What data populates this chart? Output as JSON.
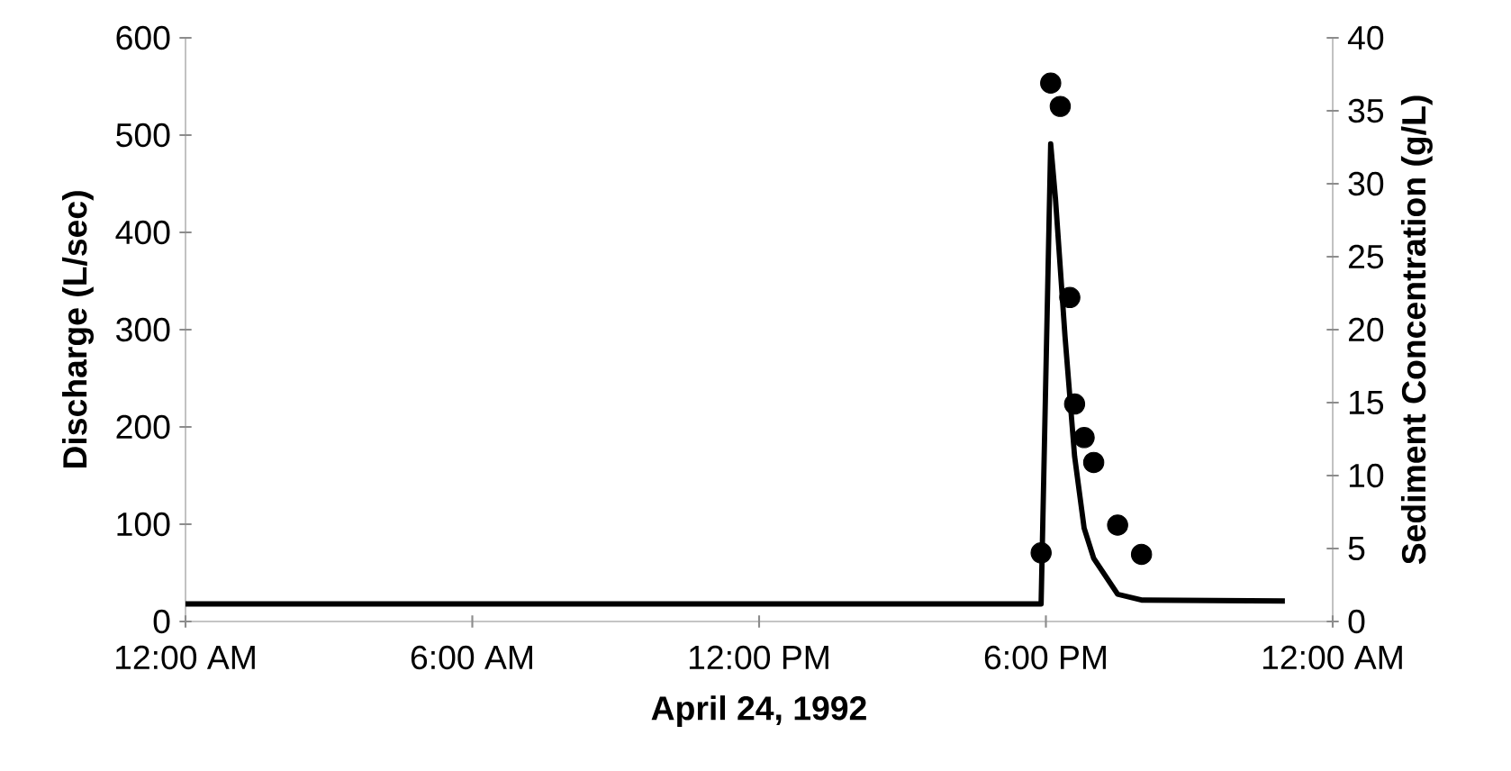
{
  "chart_data": {
    "type": "line",
    "xlabel": "April 24, 1992",
    "ylabel": "Discharge (L/sec)",
    "y2label": "Sediment Concentration (g/L)",
    "xlim": [
      0,
      24
    ],
    "xticks": [
      {
        "value": 0,
        "label": "12:00 AM"
      },
      {
        "value": 6,
        "label": "6:00 AM"
      },
      {
        "value": 12,
        "label": "12:00 PM"
      },
      {
        "value": 18,
        "label": "6:00 PM"
      },
      {
        "value": 24,
        "label": "12:00 AM"
      }
    ],
    "ylim": [
      0,
      600
    ],
    "yticks": [
      0,
      100,
      200,
      300,
      400,
      500,
      600
    ],
    "y2lim": [
      0,
      40
    ],
    "y2ticks": [
      0,
      5,
      10,
      15,
      20,
      25,
      30,
      35,
      40
    ],
    "series": [
      {
        "color": "#000000",
        "marker": "none",
        "x": [
          0,
          17.9,
          18.1,
          18.2,
          18.4,
          18.6,
          18.8,
          19.0,
          19.5,
          20.0,
          23.0
        ],
        "values": [
          18,
          18,
          491,
          435,
          293,
          170,
          96,
          65,
          28,
          22,
          21
        ]
      },
      {
        "type": "scatter",
        "axis": "y2",
        "color": "#000000",
        "marker": "circle",
        "x": [
          17.9,
          18.1,
          18.3,
          18.5,
          18.6,
          18.8,
          19.0,
          19.5,
          20.0
        ],
        "values": [
          4.7,
          36.9,
          35.3,
          22.2,
          14.9,
          12.6,
          10.9,
          6.6,
          4.6
        ]
      }
    ]
  }
}
